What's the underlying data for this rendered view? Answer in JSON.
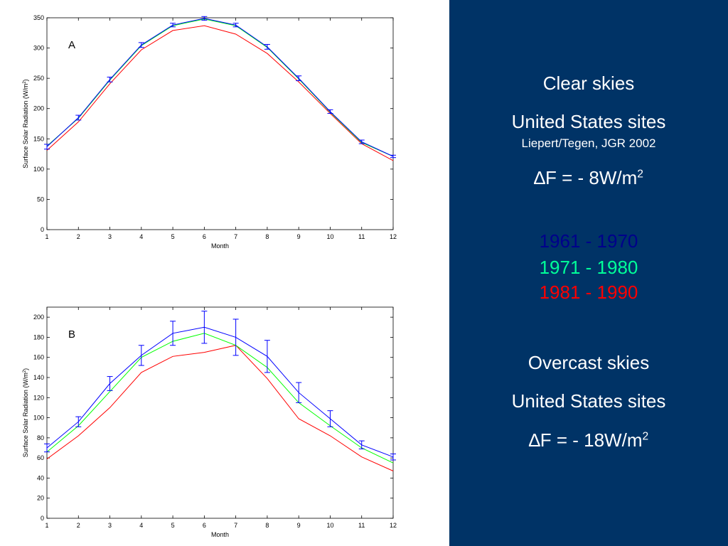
{
  "chart_data": [
    {
      "type": "line",
      "panel_label": "A",
      "xlabel": "Month",
      "ylabel": "Surface Solar Radiation (W/m",
      "ylabel_sup": "2",
      "ylabel_end": ")",
      "x": [
        1,
        2,
        3,
        4,
        5,
        6,
        7,
        8,
        9,
        10,
        11,
        12
      ],
      "xlim": [
        1,
        12
      ],
      "ylim": [
        0,
        350
      ],
      "yticks": [
        0,
        50,
        100,
        150,
        200,
        250,
        300,
        350
      ],
      "grid": false,
      "series": [
        {
          "name": "1961 - 1970",
          "color": "#0000ff",
          "values": [
            137,
            185,
            248,
            305,
            338,
            349,
            338,
            302,
            250,
            195,
            145,
            121
          ],
          "errors": [
            4,
            4,
            4,
            4,
            3,
            3,
            3,
            4,
            4,
            3,
            3,
            2
          ]
        },
        {
          "name": "1971 - 1980",
          "color": "#00ff00",
          "values": [
            138,
            184,
            247,
            304,
            337,
            348,
            337,
            301,
            249,
            194,
            144,
            121
          ]
        },
        {
          "name": "1981 - 1990",
          "color": "#ff0000",
          "values": [
            131,
            178,
            241,
            297,
            329,
            337,
            323,
            291,
            244,
            192,
            142,
            114
          ]
        }
      ]
    },
    {
      "type": "line",
      "panel_label": "B",
      "xlabel": "Month",
      "ylabel": "Surface Solar Radiation (W/m",
      "ylabel_sup": "2",
      "ylabel_end": ")",
      "x": [
        1,
        2,
        3,
        4,
        5,
        6,
        7,
        8,
        9,
        10,
        11,
        12
      ],
      "xlim": [
        1,
        12
      ],
      "ylim": [
        0,
        210
      ],
      "yticks": [
        0,
        20,
        40,
        60,
        80,
        100,
        120,
        140,
        160,
        180,
        200
      ],
      "grid": false,
      "series": [
        {
          "name": "1961 - 1970",
          "color": "#0000ff",
          "values": [
            70,
            96,
            134,
            162,
            184,
            190,
            180,
            161,
            125,
            99,
            73,
            61
          ],
          "errors": [
            4,
            5,
            7,
            10,
            12,
            16,
            18,
            16,
            10,
            8,
            4,
            3
          ]
        },
        {
          "name": "1971 - 1980",
          "color": "#00ff00",
          "values": [
            66,
            92,
            126,
            160,
            176,
            184,
            172,
            150,
            115,
            92,
            70,
            55
          ]
        },
        {
          "name": "1981 - 1990",
          "color": "#ff0000",
          "values": [
            59,
            82,
            110,
            145,
            161,
            165,
            172,
            139,
            99,
            82,
            61,
            47
          ]
        }
      ]
    }
  ],
  "clear": {
    "title": "Clear skies",
    "subtitle": "United States sites",
    "citation": "Liepert/Tegen, JGR 2002",
    "delta_symbol": "∆",
    "delta_text": "F = - 8W/m",
    "delta_sup": "2"
  },
  "legend": [
    {
      "label": "1961 - 1970",
      "color": "#00008b"
    },
    {
      "label": "1971 - 1980",
      "color": "#00ff99"
    },
    {
      "label": "1981 - 1990",
      "color": "#ff0000"
    }
  ],
  "overcast": {
    "title": "Overcast skies",
    "subtitle": "United States sites",
    "delta_symbol": "∆",
    "delta_text": "F = - 18W/m",
    "delta_sup": "2"
  }
}
